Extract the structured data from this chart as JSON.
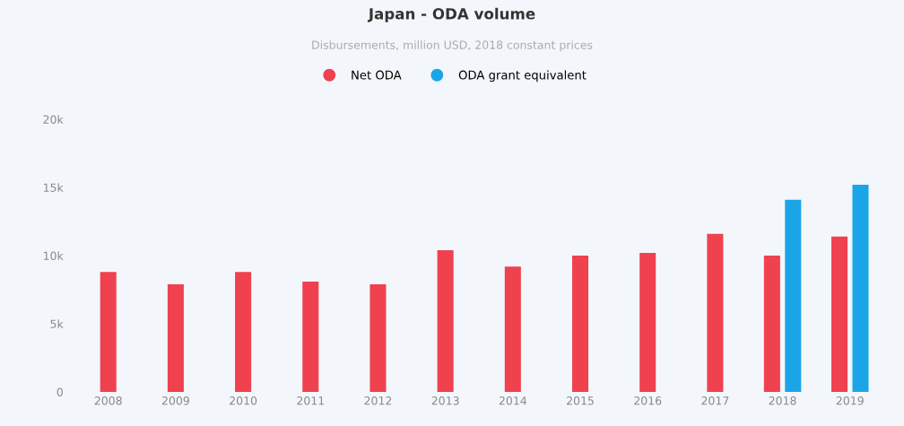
{
  "chart_data": {
    "type": "bar",
    "title": "Japan - ODA volume",
    "subtitle": "Disbursements, million USD, 2018 constant prices",
    "categories": [
      "2008",
      "2009",
      "2010",
      "2011",
      "2012",
      "2013",
      "2014",
      "2015",
      "2016",
      "2017",
      "2018",
      "2019"
    ],
    "series": [
      {
        "name": "Net ODA",
        "color": "#f0414f",
        "values": [
          8800,
          7900,
          8800,
          8100,
          7900,
          10400,
          9200,
          10000,
          10200,
          11600,
          10000,
          11400
        ]
      },
      {
        "name": "ODA grant equivalent",
        "color": "#1aa6e6",
        "values": [
          null,
          null,
          null,
          null,
          null,
          null,
          null,
          null,
          null,
          null,
          14100,
          15200
        ]
      }
    ],
    "ylim": [
      0,
      20000
    ],
    "yticks": [
      {
        "value": 0,
        "label": "0"
      },
      {
        "value": 5000,
        "label": "5k"
      },
      {
        "value": 10000,
        "label": "10k"
      },
      {
        "value": 15000,
        "label": "15k"
      },
      {
        "value": 20000,
        "label": "20k"
      }
    ],
    "grid": false,
    "legend": "top"
  }
}
